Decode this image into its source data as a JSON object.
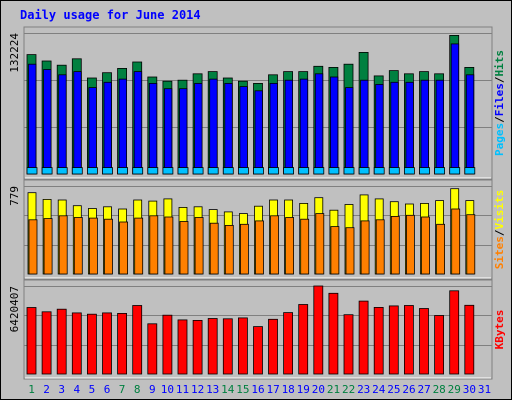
{
  "chart_data": {
    "type": "bar",
    "title": "Daily usage for June 2014",
    "categories": [
      "1",
      "2",
      "3",
      "4",
      "5",
      "6",
      "7",
      "8",
      "9",
      "10",
      "11",
      "12",
      "13",
      "14",
      "15",
      "16",
      "17",
      "18",
      "19",
      "20",
      "21",
      "22",
      "23",
      "24",
      "25",
      "26",
      "27",
      "28",
      "29",
      "30",
      "31"
    ],
    "weekend_days": [
      "1",
      "7",
      "8",
      "14",
      "15",
      "21",
      "22",
      "28",
      "29"
    ],
    "panels": [
      {
        "name": "hits-files-pages",
        "axis_max_label": "132224",
        "ylim": [
          0,
          132224
        ],
        "right_label_parts": [
          "Pages",
          "/",
          "Files",
          "/",
          "Hits"
        ],
        "series": [
          {
            "name": "Hits",
            "color": "#008040",
            "values": [
              112000,
              106000,
              102000,
              108000,
              90000,
              95000,
              99000,
              105000,
              91000,
              87000,
              88000,
              94000,
              96000,
              90000,
              87000,
              85000,
              93000,
              96000,
              96000,
              101000,
              100000,
              103000,
              114000,
              92000,
              97000,
              94000,
              96000,
              94000,
              130000,
              100000,
              null
            ]
          },
          {
            "name": "Files",
            "color": "#0000ff",
            "values": [
              103000,
              98000,
              93000,
              96000,
              81000,
              86000,
              89000,
              96000,
              85000,
              80000,
              80000,
              85000,
              89000,
              85000,
              82000,
              78000,
              85000,
              88000,
              89000,
              94000,
              91000,
              81000,
              88000,
              84000,
              86000,
              86000,
              88000,
              88000,
              122000,
              93000,
              null
            ]
          },
          {
            "name": "Pages",
            "color": "#00c0ff",
            "values": [
              6000,
              6000,
              6000,
              6000,
              6000,
              6000,
              6000,
              6000,
              6000,
              6000,
              6000,
              6000,
              6000,
              6000,
              6000,
              6000,
              6000,
              6000,
              6000,
              6000,
              6000,
              6000,
              6000,
              6000,
              6000,
              6000,
              6000,
              6000,
              6000,
              6000,
              null
            ]
          }
        ]
      },
      {
        "name": "visits-sites",
        "axis_max_label": "779",
        "ylim": [
          0,
          779
        ],
        "right_label_parts": [
          "Sites",
          "/",
          "Visits"
        ],
        "series": [
          {
            "name": "Visits",
            "color": "#ffff00",
            "values": [
              720,
              660,
              655,
              605,
              580,
              595,
              575,
              655,
              645,
              665,
              590,
              595,
              570,
              550,
              535,
              600,
              655,
              655,
              625,
              675,
              565,
              615,
              700,
              665,
              640,
              620,
              625,
              650,
              755,
              650,
              null
            ]
          },
          {
            "name": "Sites",
            "color": "#ff8000",
            "values": [
              480,
              490,
              515,
              500,
              495,
              485,
              460,
              495,
              515,
              505,
              465,
              500,
              450,
              430,
              440,
              470,
              515,
              500,
              485,
              535,
              420,
              410,
              470,
              480,
              510,
              520,
              505,
              440,
              575,
              525,
              null
            ]
          }
        ]
      },
      {
        "name": "kbytes",
        "axis_max_label": "6420407",
        "ylim": [
          0,
          6420407
        ],
        "right_label_parts": [
          "KBytes"
        ],
        "series": [
          {
            "name": "KBytes",
            "color": "#ff0000",
            "values": [
              4850000,
              4540000,
              4730000,
              4460000,
              4360000,
              4460000,
              4420000,
              5000000,
              3660000,
              4290000,
              3950000,
              3910000,
              4050000,
              4030000,
              4090000,
              3460000,
              3990000,
              4480000,
              5070000,
              6420000,
              5890000,
              4330000,
              5320000,
              4860000,
              4970000,
              5000000,
              4780000,
              4270000,
              6070000,
              5010000,
              null
            ]
          }
        ]
      }
    ],
    "colors": {
      "background": "#c0c0c0",
      "page": "#ffffff",
      "title": "#0000ff",
      "weekday_label": "#0000ff",
      "weekend_label": "#008040",
      "grid": "#808080"
    }
  }
}
